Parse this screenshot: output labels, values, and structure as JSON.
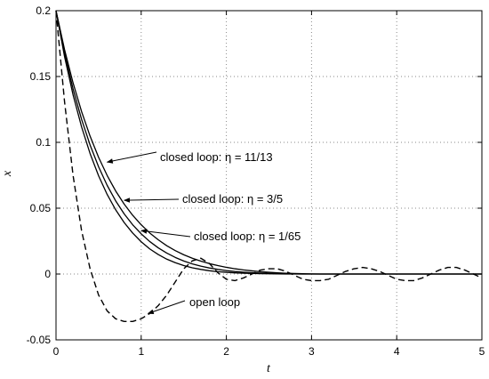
{
  "chart_data": {
    "type": "line",
    "title": "",
    "xlabel": "t",
    "ylabel": "x",
    "xlim": [
      0,
      5
    ],
    "ylim": [
      -0.05,
      0.2
    ],
    "grid": true,
    "legend": "none",
    "x_ticks": [
      0,
      1,
      2,
      3,
      4,
      5
    ],
    "y_ticks": [
      -0.05,
      0,
      0.05,
      0.1,
      0.15,
      0.2
    ],
    "x_tick_labels": [
      "0",
      "1",
      "2",
      "3",
      "4",
      "5"
    ],
    "y_tick_labels": [
      "-0.05",
      "0",
      "0.05",
      "0.1",
      "0.15",
      "0.2"
    ],
    "x": [
      0,
      0.1,
      0.2,
      0.3,
      0.4,
      0.5,
      0.6,
      0.7,
      0.8,
      0.9,
      1.0,
      1.1,
      1.2,
      1.3,
      1.4,
      1.5,
      1.6,
      1.7,
      1.8,
      1.9,
      2.0,
      2.1,
      2.2,
      2.3,
      2.4,
      2.5,
      2.6,
      2.7,
      2.8,
      2.9,
      3.0,
      3.1,
      3.2,
      3.3,
      3.4,
      3.5,
      3.6,
      3.7,
      3.8,
      3.9,
      4.0,
      4.1,
      4.2,
      4.3,
      4.4,
      4.5,
      4.6,
      4.7,
      4.8,
      4.9,
      5.0
    ],
    "series": [
      {
        "style": "solid",
        "values": [
          0.2,
          0.1705,
          0.1452,
          0.1234,
          0.1047,
          0.0886,
          0.0749,
          0.0631,
          0.0531,
          0.0446,
          0.0374,
          0.0312,
          0.026,
          0.0215,
          0.0178,
          0.0146,
          0.012,
          0.0098,
          0.0079,
          0.0064,
          0.0051,
          0.004,
          0.0031,
          0.0024,
          0.0018,
          0.0013,
          0.0009,
          0.0006,
          0.0004,
          0.0002,
          0.0001,
          0,
          0,
          0,
          0,
          0,
          0,
          0,
          0,
          0,
          0,
          0,
          0,
          0,
          0,
          0,
          0,
          0,
          0,
          0,
          0
        ]
      },
      {
        "style": "solid",
        "values": [
          0.2,
          0.1678,
          0.1406,
          0.1175,
          0.098,
          0.0814,
          0.0674,
          0.0556,
          0.0457,
          0.0374,
          0.0305,
          0.0247,
          0.0199,
          0.0159,
          0.0126,
          0.0099,
          0.0077,
          0.006,
          0.0046,
          0.0035,
          0.0026,
          0.0019,
          0.0014,
          0.001,
          0.0007,
          0.0005,
          0.0003,
          0.0002,
          0.0001,
          0,
          0,
          0,
          0,
          0,
          0,
          0,
          0,
          0,
          0,
          0,
          0,
          0,
          0,
          0,
          0,
          0,
          0,
          0,
          0,
          0,
          0
        ]
      },
      {
        "style": "solid",
        "values": [
          0.2,
          0.1652,
          0.1361,
          0.1118,
          0.0915,
          0.0746,
          0.0605,
          0.0488,
          0.0391,
          0.0311,
          0.0245,
          0.0191,
          0.0148,
          0.0113,
          0.0086,
          0.0064,
          0.0047,
          0.0035,
          0.0025,
          0.0018,
          0.0013,
          0.0009,
          0.0006,
          0.0004,
          0.0003,
          0.0002,
          0.0001,
          0,
          0,
          0,
          0,
          0,
          0,
          0,
          0,
          0,
          0,
          0,
          0,
          0,
          0,
          0,
          0,
          0,
          0,
          0,
          0,
          0,
          0,
          0,
          0
        ]
      },
      {
        "style": "dashed",
        "values": [
          0.2,
          0.131,
          0.075,
          0.033,
          0.004,
          -0.016,
          -0.028,
          -0.034,
          -0.036,
          -0.036,
          -0.034,
          -0.03,
          -0.024,
          -0.016,
          -0.006,
          0.004,
          0.01,
          0.012,
          0.008,
          0.001,
          -0.004,
          -0.005,
          -0.003,
          0,
          0.003,
          0.004,
          0.004,
          0.002,
          -0.001,
          -0.004,
          -0.005,
          -0.005,
          -0.004,
          -0.001,
          0.002,
          0.004,
          0.005,
          0.004,
          0.002,
          -0.001,
          -0.004,
          -0.005,
          -0.005,
          -0.003,
          0,
          0.003,
          0.005,
          0.005,
          0.003,
          0,
          -0.003
        ]
      }
    ],
    "annotations": [
      {
        "text": "closed loop: η = 11/13",
        "x": 0.6,
        "y": 0.085
      },
      {
        "text": "closed loop: η = 3/5",
        "x": 0.8,
        "y": 0.056
      },
      {
        "text": "closed loop: η = 1/65",
        "x": 1.0,
        "y": 0.033
      },
      {
        "text": "open loop",
        "x": 1.08,
        "y": -0.03
      }
    ]
  }
}
